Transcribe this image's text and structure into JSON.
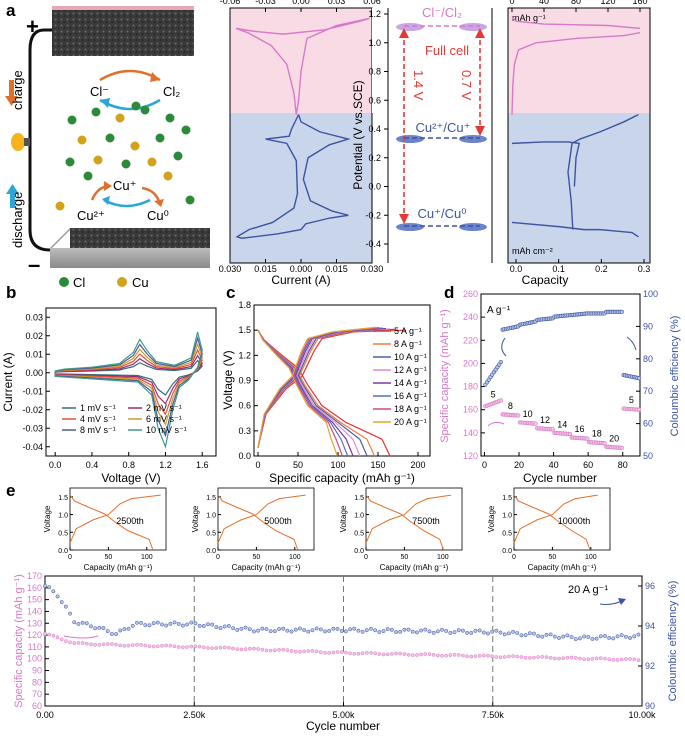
{
  "panel_labels": [
    "a",
    "b",
    "c",
    "d",
    "e"
  ],
  "schematic": {
    "plus": "+",
    "minus": "–",
    "charge": "charge",
    "discharge": "discharge",
    "cl_minus": "Cl⁻",
    "cl2": "Cl₂",
    "cu_plus": "Cu⁺",
    "cu2_plus": "Cu²⁺",
    "cu0": "Cu⁰",
    "legend_cl": "Cl",
    "legend_cu": "Cu"
  },
  "colors": {
    "pink": "#d879c8",
    "blue": "#3d54a0",
    "orange": "#e0712d",
    "red": "#e53935",
    "pinkbg": "#fbe3ee",
    "bluebg": "#cfdaec"
  },
  "chart_data": [
    {
      "id": "a-cv",
      "type": "line",
      "xlabel": "Current (A)",
      "top_ticks": [
        "-0.06",
        "-0.03",
        "0.00",
        "0.03",
        "0.06"
      ],
      "bottom_ticks": [
        "0.030",
        "0.015",
        "0.000",
        "0.015",
        "0.030"
      ],
      "ylabel": "Potential (V vs.SCE)",
      "yticks": [
        "1.2",
        "1.0",
        "0.8",
        "0.6",
        "0.4",
        "0.2",
        "0.0",
        "-0.2",
        "-0.4"
      ],
      "ylim": [
        -0.45,
        1.2
      ],
      "annotations": {
        "couple_cl": "Cl⁻/Cl₂",
        "couple_cu21": "Cu²⁺/Cu⁺",
        "couple_cu10": "Cu⁺/Cu⁰",
        "full_cell": "Full cell",
        "v14": "1.4 V",
        "v07": "0.7 V"
      }
    },
    {
      "id": "a-gcd",
      "type": "line",
      "xlabel": "Capacity",
      "top_ticks": [
        "0",
        "40",
        "80",
        "120",
        "160"
      ],
      "top_unit": "mAh g⁻¹",
      "bottom_ticks": [
        "0.0",
        "0.1",
        "0.2",
        "0.3"
      ],
      "bottom_unit": "mAh cm⁻²"
    },
    {
      "id": "b",
      "type": "line",
      "xlabel": "Voltage (V)",
      "ylabel": "Current (A)",
      "xticks": [
        "0.0",
        "0.4",
        "0.8",
        "1.2",
        "1.6"
      ],
      "yticks": [
        "0.03",
        "0.02",
        "0.01",
        "0.00",
        "-0.01",
        "-0.02",
        "-0.03",
        "-0.04"
      ],
      "xlim": [
        -0.1,
        1.75
      ],
      "ylim": [
        -0.045,
        0.035
      ],
      "series": [
        {
          "name": "1 mV s⁻¹",
          "color": "#2f6f7f",
          "scale": 0.3
        },
        {
          "name": "2 mV s⁻¹",
          "color": "#9c2c6f",
          "scale": 0.42
        },
        {
          "name": "4 mV s⁻¹",
          "color": "#e3503a",
          "scale": 0.56
        },
        {
          "name": "6 mV s⁻¹",
          "color": "#c99d2c",
          "scale": 0.7
        },
        {
          "name": "8 mV s⁻¹",
          "color": "#4c5a9a",
          "scale": 0.85
        },
        {
          "name": "10 mV s⁻¹",
          "color": "#3f9a8e",
          "scale": 1.0
        }
      ]
    },
    {
      "id": "c",
      "type": "line",
      "xlabel": "Specific capacity (mAh g⁻¹)",
      "ylabel": "Voltage (V)",
      "xticks": [
        "0",
        "50",
        "100",
        "150",
        "200"
      ],
      "yticks": [
        "1.8",
        "1.5",
        "1.2",
        "0.9",
        "0.6",
        "0.3",
        "0.0"
      ],
      "xlim": [
        -5,
        215
      ],
      "ylim": [
        0,
        1.8
      ],
      "series": [
        {
          "name": "5 A g⁻¹",
          "color": "#e4353b",
          "cap": 165
        },
        {
          "name": "8 A g⁻¹",
          "color": "#f07e3d",
          "cap": 155
        },
        {
          "name": "10 A g⁻¹",
          "color": "#4560a8",
          "cap": 150
        },
        {
          "name": "12 A g⁻¹",
          "color": "#e38ccc",
          "cap": 145
        },
        {
          "name": "14 A g⁻¹",
          "color": "#7b3fa0",
          "cap": 140
        },
        {
          "name": "16 A g⁻¹",
          "color": "#5a6fbf",
          "cap": 136
        },
        {
          "name": "18 A g⁻¹",
          "color": "#d24a7c",
          "cap": 132
        },
        {
          "name": "20 A g⁻¹",
          "color": "#e2a531",
          "cap": 128
        }
      ]
    },
    {
      "id": "d",
      "type": "scatter",
      "xlabel": "Cycle number",
      "ylabel_left": "Specific capacity (mAh g⁻¹)",
      "ylabel_right": "Coloumbic efficiency (%)",
      "xticks": [
        "0",
        "20",
        "40",
        "60",
        "80"
      ],
      "yticks_left": [
        "260",
        "240",
        "220",
        "200",
        "180",
        "160",
        "140",
        "120"
      ],
      "yticks_right": [
        "100",
        "90",
        "80",
        "70",
        "60",
        "50"
      ],
      "unit_label": "A g⁻¹",
      "rate_labels": [
        "5",
        "8",
        "10",
        "12",
        "14",
        "16",
        "18",
        "20",
        "5"
      ],
      "capacity_segments": [
        [
          0,
          10,
          163,
          168
        ],
        [
          10,
          20,
          156,
          155
        ],
        [
          20,
          30,
          149,
          148
        ],
        [
          30,
          40,
          144,
          143
        ],
        [
          40,
          50,
          140,
          139
        ],
        [
          50,
          60,
          136,
          135
        ],
        [
          60,
          70,
          132,
          131
        ],
        [
          70,
          80,
          128,
          127
        ],
        [
          80,
          90,
          161,
          160
        ]
      ],
      "ce_segments": [
        [
          0,
          10,
          72,
          79
        ],
        [
          10,
          20,
          89,
          90
        ],
        [
          20,
          30,
          90.5,
          91.5
        ],
        [
          30,
          40,
          92,
          92.5
        ],
        [
          40,
          50,
          93,
          93.5
        ],
        [
          50,
          60,
          93.5,
          94
        ],
        [
          60,
          70,
          94,
          94
        ],
        [
          70,
          80,
          94.5,
          94.5
        ],
        [
          80,
          90,
          75,
          74
        ]
      ],
      "xlim": [
        -2,
        90
      ],
      "ylim_left": [
        120,
        260
      ],
      "ylim_right": [
        50,
        100
      ]
    },
    {
      "id": "e",
      "type": "scatter",
      "xlabel": "Cycle number",
      "ylabel_left": "Specific capacity (mAh g⁻¹)",
      "ylabel_right": "Coloumbic efficiency (%)",
      "xticks": [
        "0.00",
        "2.50k",
        "5.00k",
        "7.50k",
        "10.00k"
      ],
      "yticks_left": [
        "170",
        "160",
        "150",
        "140",
        "130",
        "120",
        "110",
        "100",
        "90",
        "80",
        "70",
        "60"
      ],
      "yticks_right": [
        "96",
        "94",
        "92",
        "90"
      ],
      "rate_note": "20 A g⁻¹",
      "xlim": [
        0,
        10000
      ],
      "ylim_left": [
        60,
        170
      ],
      "ylim_right": [
        90,
        96.5
      ],
      "capacity": [
        [
          0,
          121
        ],
        [
          200,
          118
        ],
        [
          500,
          113
        ],
        [
          1000,
          112
        ],
        [
          2500,
          110
        ],
        [
          5000,
          105
        ],
        [
          7500,
          102
        ],
        [
          10000,
          99
        ]
      ],
      "efficiency": [
        [
          0,
          96
        ],
        [
          200,
          95.6
        ],
        [
          500,
          94.2
        ],
        [
          800,
          94
        ],
        [
          1200,
          93.6
        ],
        [
          1500,
          94.1
        ],
        [
          2500,
          94.1
        ],
        [
          3500,
          93.8
        ],
        [
          5000,
          93.8
        ],
        [
          7500,
          93.7
        ],
        [
          9000,
          93.4
        ],
        [
          10000,
          93.5
        ]
      ],
      "insets": [
        {
          "label": "2500th",
          "xlabel": "Capacity (mAh g⁻¹)",
          "ylabel": "Voltage",
          "xticks": [
            "0",
            "50",
            "100"
          ],
          "yticks": [
            "1.5",
            "1.0",
            "0.5",
            "0.0"
          ],
          "cap": 108
        },
        {
          "label": "5000th",
          "xlabel": "Capacity (mAh g⁻¹)",
          "ylabel": "Voltage",
          "xticks": [
            "0",
            "50",
            "100"
          ],
          "yticks": [
            "1.5",
            "1.0",
            "0.5",
            "0.0"
          ],
          "cap": 104
        },
        {
          "label": "7500th",
          "xlabel": "Capacity (mAh g⁻¹)",
          "ylabel": "Voltage",
          "xticks": [
            "0",
            "50",
            "100"
          ],
          "yticks": [
            "1.5",
            "1.0",
            "0.5",
            "0.0"
          ],
          "cap": 101
        },
        {
          "label": "10000th",
          "xlabel": "Capacity (mAh g⁻¹)",
          "ylabel": "Voltage",
          "xticks": [
            "0",
            "50",
            "100"
          ],
          "yticks": [
            "1.5",
            "1.0",
            "0.5",
            "0.0"
          ],
          "cap": 99
        }
      ]
    }
  ]
}
